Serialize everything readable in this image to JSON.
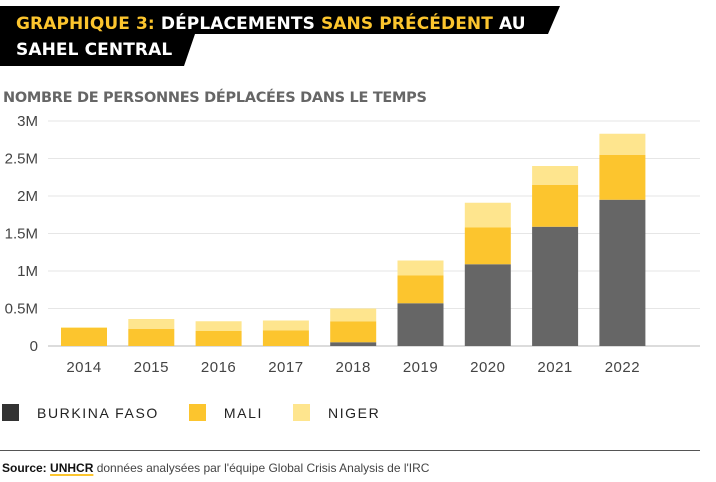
{
  "header": {
    "title_parts": [
      {
        "text": "GRAPHIQUE 3: ",
        "highlight": true
      },
      {
        "text": "DÉPLACEMENTS ",
        "highlight": false
      },
      {
        "text": "SANS PRÉCÉDENT",
        "highlight": true
      },
      {
        "text": " AU",
        "highlight": false
      }
    ],
    "title_line2": "SAHEL CENTRAL",
    "subtitle": "NOMBRE DE PERSONNES DÉPLACÉES DANS LE TEMPS"
  },
  "colors": {
    "burkina_faso": "#666666",
    "mali": "#fcc52e",
    "niger": "#fee58e",
    "title_highlight": "#fcc52e",
    "gridline": "#e3e3e3"
  },
  "chart_data": {
    "type": "bar",
    "stacked": true,
    "title": "NOMBRE DE PERSONNES DÉPLACÉES DANS LE TEMPS",
    "xlabel": "",
    "ylabel": "",
    "categories": [
      "2014",
      "2015",
      "2016",
      "2017",
      "2018",
      "2019",
      "2020",
      "2021",
      "2022"
    ],
    "series": [
      {
        "name": "BURKINA FASO",
        "color": "#666666",
        "values": [
          0,
          0,
          0,
          0,
          0.05,
          0.57,
          1.09,
          1.59,
          1.95
        ]
      },
      {
        "name": "MALI",
        "color": "#fcc52e",
        "values": [
          0.24,
          0.23,
          0.2,
          0.21,
          0.28,
          0.37,
          0.49,
          0.56,
          0.6
        ]
      },
      {
        "name": "NIGER",
        "color": "#fee58e",
        "values": [
          0.01,
          0.13,
          0.13,
          0.13,
          0.17,
          0.2,
          0.33,
          0.25,
          0.28
        ]
      }
    ],
    "units": "millions",
    "ylim": [
      0,
      3
    ],
    "yticks": [
      0,
      0.5,
      1,
      1.5,
      2,
      2.5,
      3
    ],
    "ytick_labels": [
      "0",
      "0.5M",
      "1M",
      "1.5M",
      "2M",
      "2.5M",
      "3M"
    ],
    "grid": true,
    "legend_position": "bottom-left"
  },
  "legend": [
    {
      "label": "BURKINA FASO",
      "color": "#333333"
    },
    {
      "label": "MALI",
      "color": "#fcc52e"
    },
    {
      "label": "NIGER",
      "color": "#fee58e"
    }
  ],
  "footer": {
    "source_label": "Source:",
    "source_org": "UNHCR",
    "source_text": " données analysées par l'équipe Global Crisis Analysis de l'IRC"
  }
}
